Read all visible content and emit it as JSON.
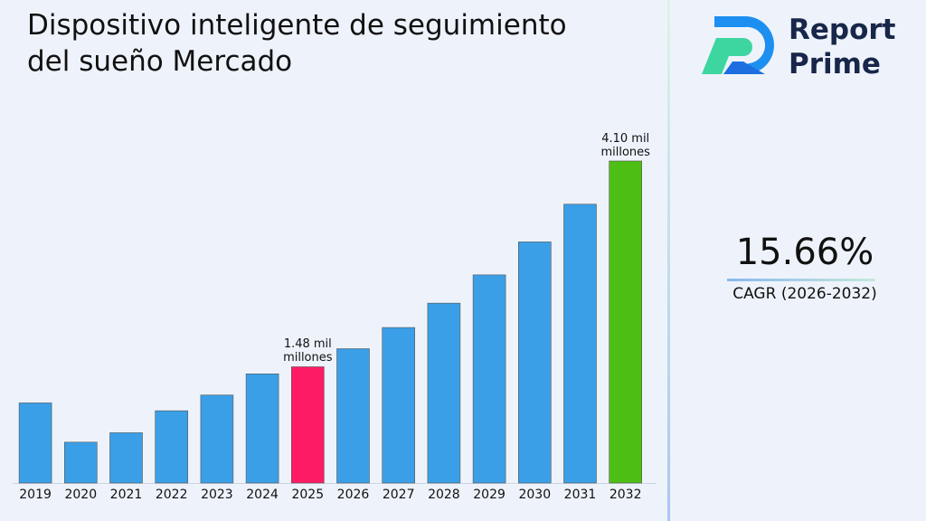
{
  "chart_data": {
    "type": "bar",
    "title": "Dispositivo inteligente de seguimiento del sueño Mercado",
    "categories": [
      "2019",
      "2020",
      "2021",
      "2022",
      "2023",
      "2024",
      "2025",
      "2026",
      "2027",
      "2028",
      "2029",
      "2030",
      "2031",
      "2032"
    ],
    "values": [
      1.02,
      0.52,
      0.64,
      0.92,
      1.12,
      1.39,
      1.48,
      1.71,
      1.98,
      2.29,
      2.65,
      3.07,
      3.55,
      4.1
    ],
    "value_labels": [
      null,
      null,
      null,
      null,
      null,
      null,
      "1.48 mil millones",
      null,
      null,
      null,
      null,
      null,
      null,
      "4.10 mil millones"
    ],
    "colors": [
      "#3a9fe6",
      "#3a9fe6",
      "#3a9fe6",
      "#3a9fe6",
      "#3a9fe6",
      "#3a9fe6",
      "#fe1b65",
      "#3a9fe6",
      "#3a9fe6",
      "#3a9fe6",
      "#3a9fe6",
      "#3a9fe6",
      "#3a9fe6",
      "#4dbf14"
    ]
  },
  "brand": [
    "Report",
    "Prime"
  ],
  "cagr": {
    "value": "15.66%",
    "label": "CAGR (2026-2032)"
  }
}
